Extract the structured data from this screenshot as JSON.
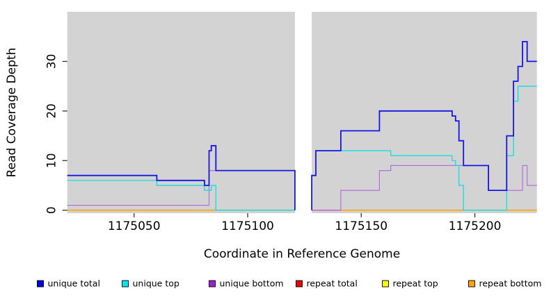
{
  "chart_data": {
    "type": "line",
    "subtype": "step-coverage-plot",
    "title": "",
    "xlabel": "Coordinate in Reference Genome",
    "ylabel": "Read Coverage Depth",
    "xlim": [
      1175020.6,
      1175227.3
    ],
    "ylim": [
      0,
      40
    ],
    "x_ticks": [
      1175050,
      1175100,
      1175150,
      1175200
    ],
    "y_ticks": [
      0,
      10,
      20,
      30
    ],
    "grid": false,
    "panel_bg": "#d3d3d3",
    "gap_region": {
      "x0": 1175120.8,
      "x1": 1175128.2,
      "color": "#ffffff"
    },
    "legend_position": "bottom",
    "series": [
      {
        "name": "unique total",
        "color": "#1414e6",
        "legend_color": "#0000dd",
        "width": 1.8,
        "draw": true,
        "segments": [
          {
            "start_at_zero": false,
            "points": [
              [
                1175020.6,
                7
              ],
              [
                1175060,
                6
              ],
              [
                1175081,
                5
              ],
              [
                1175083,
                12
              ],
              [
                1175084,
                13
              ],
              [
                1175086,
                8
              ]
            ],
            "end_x": 1175120.8,
            "end_at_zero": true
          },
          {
            "start_at_zero": true,
            "points": [
              [
                1175128.2,
                7
              ],
              [
                1175130,
                12
              ],
              [
                1175141,
                16
              ],
              [
                1175158,
                20
              ],
              [
                1175190,
                19
              ],
              [
                1175191.5,
                18
              ],
              [
                1175193,
                14
              ],
              [
                1175195,
                9
              ],
              [
                1175206,
                4
              ],
              [
                1175214,
                15
              ],
              [
                1175217,
                26
              ],
              [
                1175219,
                29
              ],
              [
                1175221,
                34
              ],
              [
                1175223,
                30
              ]
            ],
            "end_x": 1175227.3,
            "end_at_zero": false
          }
        ]
      },
      {
        "name": "unique top",
        "color": "#00dfdf",
        "legend_color": "#00e5ee",
        "width": 1.2,
        "draw": true,
        "segments": [
          {
            "start_at_zero": false,
            "points": [
              [
                1175020.6,
                6
              ],
              [
                1175060,
                5
              ],
              [
                1175081,
                4
              ],
              [
                1175084,
                5
              ],
              [
                1175086,
                0
              ]
            ],
            "end_x": 1175120.8,
            "end_at_zero": false
          },
          {
            "start_at_zero": true,
            "points": [
              [
                1175128.2,
                7
              ],
              [
                1175130,
                12
              ],
              [
                1175163,
                11
              ],
              [
                1175190,
                10
              ],
              [
                1175191.5,
                9
              ],
              [
                1175193,
                5
              ],
              [
                1175195,
                0
              ],
              [
                1175214,
                11
              ],
              [
                1175217,
                22
              ],
              [
                1175219,
                25
              ]
            ],
            "end_x": 1175227.3,
            "end_at_zero": false
          }
        ]
      },
      {
        "name": "unique bottom",
        "color": "#b46fdc",
        "legend_color": "#9b1fd4",
        "width": 1.2,
        "draw": true,
        "segments": [
          {
            "start_at_zero": false,
            "points": [
              [
                1175020.6,
                1
              ],
              [
                1175083,
                8
              ]
            ],
            "end_x": 1175120.8,
            "end_at_zero": true
          },
          {
            "start_at_zero": false,
            "points": [
              [
                1175128.2,
                0
              ],
              [
                1175141,
                4
              ],
              [
                1175158,
                8
              ],
              [
                1175163,
                9
              ],
              [
                1175206,
                4
              ],
              [
                1175221,
                9
              ],
              [
                1175223,
                5
              ]
            ],
            "end_x": 1175227.3,
            "end_at_zero": false
          }
        ]
      },
      {
        "name": "repeat total",
        "color": "#ee0000",
        "legend_color": "#ee0000",
        "width": 1.2,
        "draw": false,
        "segments": [
          {
            "start_at_zero": false,
            "points": [
              [
                1175020.6,
                0
              ]
            ],
            "end_x": 1175120.8,
            "end_at_zero": false
          },
          {
            "start_at_zero": false,
            "points": [
              [
                1175128.2,
                0
              ]
            ],
            "end_x": 1175227.3,
            "end_at_zero": false
          }
        ]
      },
      {
        "name": "repeat top",
        "color": "#ffff00",
        "legend_color": "#ffff00",
        "width": 1.2,
        "draw": false,
        "segments": [
          {
            "start_at_zero": false,
            "points": [
              [
                1175020.6,
                0
              ]
            ],
            "end_x": 1175120.8,
            "end_at_zero": false
          },
          {
            "start_at_zero": false,
            "points": [
              [
                1175128.2,
                0
              ]
            ],
            "end_x": 1175227.3,
            "end_at_zero": false
          }
        ]
      },
      {
        "name": "repeat bottom",
        "color": "#ffa500",
        "legend_color": "#ffa500",
        "width": 1.5,
        "draw": false,
        "segments": [
          {
            "start_at_zero": false,
            "points": [
              [
                1175020.6,
                0
              ]
            ],
            "end_x": 1175120.8,
            "end_at_zero": false
          },
          {
            "start_at_zero": false,
            "points": [
              [
                1175128.2,
                0
              ]
            ],
            "end_x": 1175227.3,
            "end_at_zero": false
          }
        ]
      }
    ],
    "baseline_segments": [
      {
        "x0": 1175020.6,
        "x1": 1175086,
        "color": "#ffa500"
      },
      {
        "x0": 1175086,
        "x1": 1175120.8,
        "color": "#8fce8f"
      },
      {
        "x0": 1175128.2,
        "x1": 1175141,
        "color": "#e25c92"
      },
      {
        "x0": 1175141,
        "x1": 1175195,
        "color": "#ffa500"
      },
      {
        "x0": 1175195,
        "x1": 1175214,
        "color": "#8fce8f"
      },
      {
        "x0": 1175214,
        "x1": 1175227.3,
        "color": "#ffa500"
      }
    ]
  },
  "legend": {
    "items": [
      {
        "label": "unique total",
        "color": "#0000dd"
      },
      {
        "label": "unique top",
        "color": "#00e5ee"
      },
      {
        "label": "unique bottom",
        "color": "#9b1fd4"
      },
      {
        "label": "repeat total",
        "color": "#ee0000"
      },
      {
        "label": "repeat top",
        "color": "#ffff00"
      },
      {
        "label": "repeat bottom",
        "color": "#ffa500"
      }
    ]
  }
}
